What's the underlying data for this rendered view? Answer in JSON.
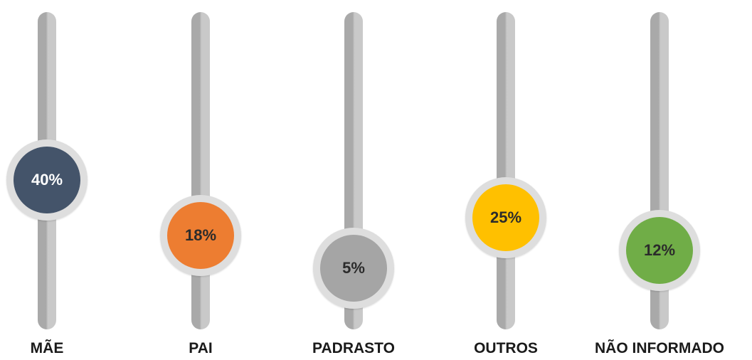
{
  "chart_data": {
    "type": "bar",
    "title": "",
    "categories": [
      "MÃE",
      "PAI",
      "PADRASTO",
      "OUTROS",
      "NÃO INFORMADO"
    ],
    "series": [
      {
        "values": [
          40,
          18,
          5,
          25,
          12
        ],
        "labels": [
          "40%",
          "18%",
          "5%",
          "25%",
          "12%"
        ],
        "colors": [
          "#44546a",
          "#ed7d31",
          "#a5a5a5",
          "#ffc000",
          "#70ad47"
        ]
      }
    ],
    "label_colors": [
      "#ffffff",
      "#2b2b2b",
      "#2b2b2b",
      "#2b2b2b",
      "#2b2b2b"
    ],
    "ylim": [
      0,
      45
    ],
    "grid": false,
    "legend": "none"
  }
}
